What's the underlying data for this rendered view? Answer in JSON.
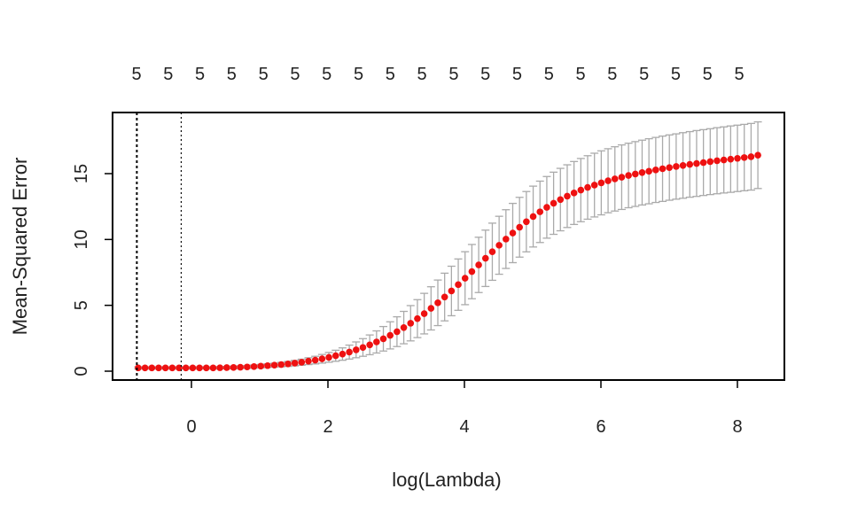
{
  "chart_data": {
    "type": "scatter",
    "title": "",
    "xlabel": "log(Lambda)",
    "ylabel": "Mean-Squared Error",
    "xlim": [
      -1.0,
      8.5
    ],
    "ylim": [
      -0.7,
      19.5
    ],
    "x_ticks": [
      0,
      2,
      4,
      6,
      8
    ],
    "y_ticks": [
      0,
      5,
      10,
      15
    ],
    "x_tick_labels": [
      "0",
      "2",
      "4",
      "6",
      "8"
    ],
    "y_tick_labels": [
      "0",
      "5",
      "10",
      "15"
    ],
    "top_axis_labels": [
      "5",
      "5",
      "5",
      "5",
      "5",
      "5",
      "5",
      "5",
      "5",
      "5",
      "5",
      "5",
      "5",
      "5",
      "5",
      "5",
      "5",
      "5",
      "5",
      "5"
    ],
    "vlines": [
      {
        "x": -0.8,
        "style": "dotted"
      },
      {
        "x": -0.15,
        "style": "dotted"
      }
    ],
    "series": [
      {
        "x_start": -0.78,
        "x_end": 8.3,
        "point_count": 92,
        "points_y": [
          0.25,
          0.25,
          0.25,
          0.25,
          0.25,
          0.25,
          0.25,
          0.25,
          0.25,
          0.25,
          0.25,
          0.25,
          0.26,
          0.27,
          0.28,
          0.3,
          0.32,
          0.35,
          0.38,
          0.42,
          0.46,
          0.5,
          0.55,
          0.61,
          0.68,
          0.76,
          0.84,
          0.94,
          1.05,
          1.17,
          1.3,
          1.45,
          1.62,
          1.8,
          2.0,
          2.22,
          2.46,
          2.72,
          3.0,
          3.31,
          3.64,
          3.99,
          4.37,
          4.77,
          5.19,
          5.63,
          6.09,
          6.57,
          7.06,
          7.56,
          8.07,
          8.57,
          9.07,
          9.56,
          10.03,
          10.49,
          10.93,
          11.35,
          11.74,
          12.1,
          12.44,
          12.75,
          13.03,
          13.29,
          13.53,
          13.75,
          13.95,
          14.13,
          14.3,
          14.46,
          14.6,
          14.73,
          14.86,
          14.97,
          15.08,
          15.18,
          15.28,
          15.37,
          15.46,
          15.54,
          15.62,
          15.7,
          15.77,
          15.84,
          15.91,
          15.98,
          16.04,
          16.1,
          16.16,
          16.22,
          16.28,
          16.4
        ],
        "error_halfwidth_y": [
          0.08,
          0.08,
          0.08,
          0.08,
          0.08,
          0.08,
          0.08,
          0.08,
          0.08,
          0.08,
          0.08,
          0.08,
          0.09,
          0.09,
          0.1,
          0.1,
          0.11,
          0.12,
          0.13,
          0.14,
          0.15,
          0.17,
          0.19,
          0.21,
          0.23,
          0.26,
          0.29,
          0.33,
          0.37,
          0.42,
          0.47,
          0.53,
          0.6,
          0.67,
          0.75,
          0.84,
          0.93,
          1.03,
          1.13,
          1.23,
          1.34,
          1.44,
          1.54,
          1.64,
          1.73,
          1.81,
          1.88,
          1.95,
          2.01,
          2.06,
          2.1,
          2.14,
          2.17,
          2.2,
          2.23,
          2.25,
          2.27,
          2.29,
          2.31,
          2.33,
          2.34,
          2.36,
          2.37,
          2.38,
          2.39,
          2.4,
          2.41,
          2.42,
          2.43,
          2.43,
          2.44,
          2.45,
          2.45,
          2.46,
          2.46,
          2.47,
          2.47,
          2.48,
          2.48,
          2.48,
          2.49,
          2.49,
          2.5,
          2.5,
          2.5,
          2.51,
          2.51,
          2.52,
          2.52,
          2.52,
          2.53,
          2.53
        ],
        "point_color": "#ee1111",
        "errorbar_color": "#aaaaaa"
      }
    ]
  }
}
